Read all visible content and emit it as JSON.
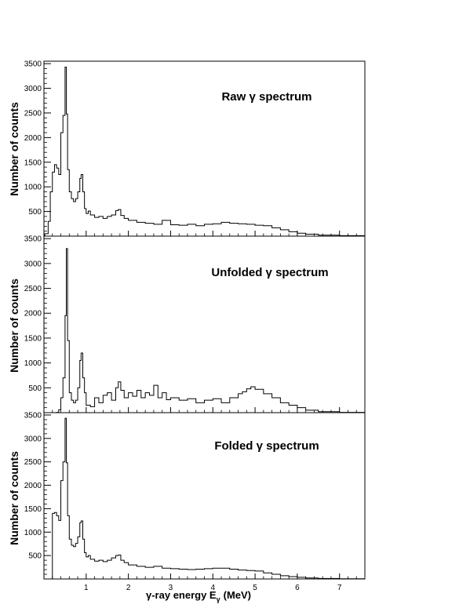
{
  "figure": {
    "xlabel": "γ-ray energy E",
    "xlabel_subscript": "γ",
    "xlabel_unit": "(MeV)"
  },
  "chart_data": [
    {
      "type": "line",
      "title": "Raw γ spectrum",
      "ylabel": "Number of counts",
      "xlim": [
        0.0,
        7.6
      ],
      "ylim": [
        0,
        3550
      ],
      "yticks": [
        500,
        1000,
        1500,
        2000,
        2500,
        3000,
        3500
      ],
      "x": [
        0.02,
        0.1,
        0.15,
        0.2,
        0.25,
        0.3,
        0.35,
        0.4,
        0.45,
        0.5,
        0.53,
        0.56,
        0.6,
        0.65,
        0.7,
        0.75,
        0.8,
        0.85,
        0.88,
        0.92,
        0.96,
        1.0,
        1.05,
        1.1,
        1.2,
        1.3,
        1.4,
        1.5,
        1.6,
        1.7,
        1.76,
        1.82,
        1.9,
        2.0,
        2.2,
        2.4,
        2.6,
        2.8,
        3.0,
        3.2,
        3.4,
        3.6,
        3.8,
        4.0,
        4.2,
        4.4,
        4.6,
        4.8,
        5.0,
        5.2,
        5.4,
        5.6,
        5.8,
        6.0,
        6.2,
        6.5,
        7.0,
        7.6
      ],
      "y": [
        50,
        300,
        900,
        1300,
        1450,
        1380,
        1250,
        2100,
        2450,
        3430,
        2480,
        1350,
        900,
        760,
        700,
        760,
        900,
        1170,
        1250,
        900,
        560,
        460,
        510,
        430,
        380,
        400,
        360,
        400,
        430,
        520,
        540,
        420,
        360,
        320,
        280,
        260,
        240,
        320,
        230,
        220,
        240,
        210,
        240,
        250,
        280,
        260,
        250,
        240,
        220,
        210,
        170,
        130,
        90,
        60,
        40,
        20,
        10,
        5
      ]
    },
    {
      "type": "line",
      "title": "Unfolded γ spectrum",
      "ylabel": "Number of counts",
      "xlim": [
        0.0,
        7.6
      ],
      "ylim": [
        0,
        3550
      ],
      "yticks": [
        500,
        1000,
        1500,
        2000,
        2500,
        3000,
        3500
      ],
      "x": [
        0.02,
        0.2,
        0.3,
        0.35,
        0.4,
        0.45,
        0.5,
        0.53,
        0.56,
        0.6,
        0.65,
        0.7,
        0.75,
        0.8,
        0.85,
        0.88,
        0.92,
        0.96,
        1.0,
        1.1,
        1.2,
        1.3,
        1.4,
        1.5,
        1.6,
        1.7,
        1.76,
        1.82,
        1.9,
        2.0,
        2.1,
        2.2,
        2.3,
        2.4,
        2.5,
        2.6,
        2.7,
        2.8,
        2.9,
        3.0,
        3.2,
        3.4,
        3.6,
        3.8,
        4.0,
        4.2,
        4.4,
        4.6,
        4.7,
        4.8,
        4.9,
        5.0,
        5.2,
        5.4,
        5.6,
        5.8,
        6.0,
        6.2,
        6.5,
        7.0,
        7.6
      ],
      "y": [
        0,
        0,
        5,
        60,
        300,
        700,
        1950,
        3300,
        1450,
        400,
        250,
        200,
        250,
        500,
        1050,
        1200,
        700,
        400,
        150,
        120,
        300,
        200,
        350,
        400,
        250,
        500,
        620,
        450,
        300,
        400,
        330,
        450,
        300,
        400,
        350,
        550,
        300,
        400,
        260,
        300,
        250,
        280,
        200,
        250,
        280,
        200,
        300,
        380,
        420,
        480,
        520,
        470,
        380,
        300,
        200,
        150,
        100,
        50,
        20,
        5,
        0
      ]
    },
    {
      "type": "line",
      "title": "Folded γ spectrum",
      "ylabel": "Number of counts",
      "xlim": [
        0.0,
        7.6
      ],
      "ylim": [
        0,
        3550
      ],
      "yticks": [
        500,
        1000,
        1500,
        2000,
        2500,
        3000,
        3500
      ],
      "x": [
        0.02,
        0.18,
        0.2,
        0.25,
        0.3,
        0.35,
        0.4,
        0.45,
        0.5,
        0.53,
        0.56,
        0.6,
        0.65,
        0.7,
        0.75,
        0.8,
        0.85,
        0.88,
        0.92,
        0.96,
        1.0,
        1.05,
        1.1,
        1.2,
        1.3,
        1.4,
        1.5,
        1.6,
        1.7,
        1.76,
        1.82,
        1.9,
        2.0,
        2.2,
        2.4,
        2.6,
        2.8,
        3.0,
        3.2,
        3.4,
        3.6,
        3.8,
        4.0,
        4.2,
        4.4,
        4.6,
        4.8,
        5.0,
        5.2,
        5.4,
        5.6,
        5.8,
        6.0,
        6.2,
        6.5,
        7.0,
        7.6
      ],
      "y": [
        0,
        0,
        1400,
        1420,
        1350,
        1250,
        2100,
        2500,
        3430,
        2480,
        1350,
        850,
        720,
        690,
        760,
        900,
        1200,
        1240,
        850,
        560,
        470,
        500,
        420,
        380,
        400,
        370,
        400,
        450,
        500,
        510,
        400,
        350,
        300,
        270,
        250,
        270,
        230,
        220,
        210,
        200,
        210,
        220,
        230,
        230,
        210,
        190,
        180,
        170,
        130,
        100,
        70,
        50,
        35,
        20,
        10,
        5,
        2
      ]
    }
  ]
}
